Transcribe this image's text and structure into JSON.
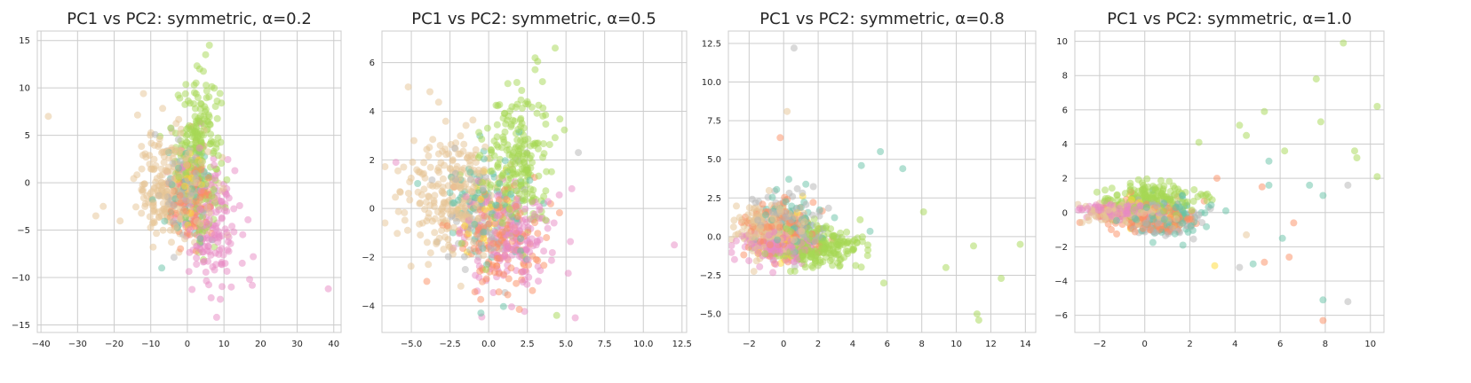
{
  "chart_data": [
    {
      "type": "scatter",
      "title": "PC1 vs PC2: symmetric, α=0.2",
      "xlabel": "",
      "ylabel": "",
      "xlim": [
        -41,
        42
      ],
      "ylim": [
        -15.8,
        16
      ],
      "xticks": [
        -40,
        -30,
        -20,
        -10,
        0,
        10,
        20,
        30,
        40
      ],
      "yticks": [
        -15,
        -10,
        -5,
        0,
        5,
        10,
        15
      ],
      "grid": true,
      "legend": "none",
      "clusters": [
        {
          "name": "green",
          "color": "#a6d854",
          "n": 220,
          "cx": 3,
          "cy": 3.5,
          "sx": 3.0,
          "sy": 3.8
        },
        {
          "name": "tan",
          "color": "#e5c494",
          "n": 260,
          "cx": -4,
          "cy": -0.5,
          "sx": 5.0,
          "sy": 2.8
        },
        {
          "name": "pink",
          "color": "#e78ac3",
          "n": 170,
          "cx": 6,
          "cy": -3.5,
          "sx": 4.0,
          "sy": 3.5
        },
        {
          "name": "orange",
          "color": "#fc8d62",
          "n": 120,
          "cx": 1,
          "cy": -2,
          "sx": 3.0,
          "sy": 2.5
        },
        {
          "name": "teal",
          "color": "#66c2a5",
          "n": 70,
          "cx": 0,
          "cy": -1,
          "sx": 3.0,
          "sy": 2.5
        },
        {
          "name": "gray",
          "color": "#b3b3b3",
          "n": 70,
          "cx": 0,
          "cy": -1,
          "sx": 2.8,
          "sy": 2.3
        },
        {
          "name": "yellow",
          "color": "#ffd92f",
          "n": 25,
          "cx": 1,
          "cy": 0,
          "sx": 2.0,
          "sy": 2.0
        }
      ],
      "outliers": [
        {
          "x": -38,
          "y": 7,
          "c": "#e5c494"
        },
        {
          "x": 38.5,
          "y": -11.2,
          "c": "#e78ac3"
        },
        {
          "x": 18,
          "y": -7.8,
          "c": "#e78ac3"
        },
        {
          "x": 17,
          "y": -10.2,
          "c": "#e78ac3"
        },
        {
          "x": 15,
          "y": -8.5,
          "c": "#e78ac3"
        },
        {
          "x": 8,
          "y": -14.2,
          "c": "#e78ac3"
        },
        {
          "x": 9,
          "y": -12.3,
          "c": "#e78ac3"
        },
        {
          "x": -12,
          "y": 9.4,
          "c": "#e5c494"
        },
        {
          "x": -7,
          "y": -9,
          "c": "#66c2a5"
        },
        {
          "x": 6,
          "y": 14.5,
          "c": "#a6d854"
        },
        {
          "x": 5,
          "y": 13.5,
          "c": "#a6d854"
        },
        {
          "x": -23,
          "y": -2.5,
          "c": "#e5c494"
        },
        {
          "x": -25,
          "y": -3.5,
          "c": "#e5c494"
        },
        {
          "x": 12,
          "y": -11,
          "c": "#e78ac3"
        }
      ]
    },
    {
      "type": "scatter",
      "title": "PC1 vs PC2: symmetric, α=0.5",
      "xlabel": "",
      "ylabel": "",
      "xlim": [
        -6.9,
        12.8
      ],
      "ylim": [
        -5.1,
        7.3
      ],
      "xticks": [
        -5,
        -2.5,
        0,
        2.5,
        5,
        7.5,
        10,
        12.5
      ],
      "xticklabels": [
        "−5.0",
        "−2.5",
        "0.0",
        "2.5",
        "5.0",
        "7.5",
        "10.0",
        "12.5"
      ],
      "yticks": [
        -4,
        -2,
        0,
        2,
        4,
        6
      ],
      "grid": true,
      "legend": "none",
      "clusters": [
        {
          "name": "green",
          "color": "#a6d854",
          "n": 230,
          "cx": 1.8,
          "cy": 2.0,
          "sx": 1.1,
          "sy": 1.5
        },
        {
          "name": "tan",
          "color": "#e5c494",
          "n": 250,
          "cx": -2.5,
          "cy": 0.6,
          "sx": 1.6,
          "sy": 1.2
        },
        {
          "name": "pink",
          "color": "#e78ac3",
          "n": 180,
          "cx": 1.3,
          "cy": -1.3,
          "sx": 1.5,
          "sy": 1.0
        },
        {
          "name": "orange",
          "color": "#fc8d62",
          "n": 130,
          "cx": 0.5,
          "cy": -1.2,
          "sx": 1.4,
          "sy": 1.1
        },
        {
          "name": "teal",
          "color": "#66c2a5",
          "n": 80,
          "cx": 0.0,
          "cy": 0.0,
          "sx": 1.4,
          "sy": 1.1
        },
        {
          "name": "gray",
          "color": "#b3b3b3",
          "n": 80,
          "cx": -0.3,
          "cy": -0.5,
          "sx": 1.4,
          "sy": 1.1
        },
        {
          "name": "yellow",
          "color": "#ffd92f",
          "n": 25,
          "cx": 0.0,
          "cy": 0.0,
          "sx": 1.0,
          "sy": 1.0
        }
      ],
      "outliers": [
        {
          "x": 12,
          "y": -1.5,
          "c": "#e78ac3"
        },
        {
          "x": 4.3,
          "y": 6.6,
          "c": "#a6d854"
        },
        {
          "x": 5.8,
          "y": 2.3,
          "c": "#b3b3b3"
        },
        {
          "x": 5.6,
          "y": -4.5,
          "c": "#e78ac3"
        },
        {
          "x": 4.4,
          "y": -4.4,
          "c": "#a6d854"
        },
        {
          "x": -0.5,
          "y": -4.3,
          "c": "#66c2a5"
        },
        {
          "x": -5.2,
          "y": 5.0,
          "c": "#e5c494"
        },
        {
          "x": -6.0,
          "y": 1.9,
          "c": "#e78ac3"
        },
        {
          "x": -3.8,
          "y": 4.8,
          "c": "#e5c494"
        },
        {
          "x": 3.0,
          "y": 6.2,
          "c": "#a6d854"
        },
        {
          "x": -4.0,
          "y": -3.0,
          "c": "#fc8d62"
        }
      ]
    },
    {
      "type": "scatter",
      "title": "PC1 vs PC2: symmetric, α=0.8",
      "xlabel": "",
      "ylabel": "",
      "xlim": [
        -3.2,
        14.6
      ],
      "ylim": [
        -6.2,
        13.3
      ],
      "xticks": [
        -2,
        0,
        2,
        4,
        6,
        8,
        10,
        12,
        14
      ],
      "yticks": [
        -5,
        -2.5,
        0,
        2.5,
        5,
        7.5,
        10,
        12.5
      ],
      "yticklabels": [
        "−5.0",
        "−2.5",
        "0.0",
        "2.5",
        "5.0",
        "7.5",
        "10.0",
        "12.5"
      ],
      "grid": true,
      "legend": "none",
      "clusters": [
        {
          "name": "green",
          "color": "#a6d854",
          "n": 230,
          "cx": 2.0,
          "cy": -0.7,
          "sx": 1.3,
          "sy": 0.7
        },
        {
          "name": "tan",
          "color": "#e5c494",
          "n": 220,
          "cx": -0.8,
          "cy": 0.4,
          "sx": 0.9,
          "sy": 0.8
        },
        {
          "name": "pink",
          "color": "#e78ac3",
          "n": 170,
          "cx": -0.5,
          "cy": -0.6,
          "sx": 1.0,
          "sy": 0.5
        },
        {
          "name": "orange",
          "color": "#fc8d62",
          "n": 130,
          "cx": 0.0,
          "cy": 0.4,
          "sx": 1.0,
          "sy": 0.9
        },
        {
          "name": "teal",
          "color": "#66c2a5",
          "n": 80,
          "cx": 0.5,
          "cy": 0.8,
          "sx": 1.1,
          "sy": 1.1
        },
        {
          "name": "gray",
          "color": "#b3b3b3",
          "n": 80,
          "cx": 0.5,
          "cy": 1.0,
          "sx": 1.1,
          "sy": 1.2
        },
        {
          "name": "yellow",
          "color": "#ffd92f",
          "n": 25,
          "cx": 0.0,
          "cy": 0.0,
          "sx": 0.8,
          "sy": 0.8
        }
      ],
      "outliers": [
        {
          "x": 0.6,
          "y": 12.2,
          "c": "#b3b3b3"
        },
        {
          "x": 0.2,
          "y": 8.1,
          "c": "#e5c494"
        },
        {
          "x": 11.2,
          "y": -5.0,
          "c": "#a6d854"
        },
        {
          "x": 11.3,
          "y": -5.4,
          "c": "#a6d854"
        },
        {
          "x": 12.6,
          "y": -2.7,
          "c": "#a6d854"
        },
        {
          "x": 13.7,
          "y": -0.5,
          "c": "#a6d854"
        },
        {
          "x": 11.0,
          "y": -0.6,
          "c": "#a6d854"
        },
        {
          "x": 5.6,
          "y": 5.5,
          "c": "#66c2a5"
        },
        {
          "x": 6.9,
          "y": 4.4,
          "c": "#66c2a5"
        },
        {
          "x": -0.2,
          "y": 6.4,
          "c": "#fc8d62"
        },
        {
          "x": 9.4,
          "y": -2.0,
          "c": "#a6d854"
        },
        {
          "x": 8.1,
          "y": 1.6,
          "c": "#a6d854"
        },
        {
          "x": 5.8,
          "y": -3.0,
          "c": "#a6d854"
        },
        {
          "x": 4.5,
          "y": 4.6,
          "c": "#66c2a5"
        }
      ]
    },
    {
      "type": "scatter",
      "title": "PC1 vs PC2: symmetric, α=1.0",
      "xlabel": "",
      "ylabel": "",
      "xlim": [
        -3.1,
        10.6
      ],
      "ylim": [
        -7.0,
        10.6
      ],
      "xticks": [
        -2,
        0,
        2,
        4,
        6,
        8,
        10
      ],
      "yticks": [
        -6,
        -4,
        -2,
        0,
        2,
        4,
        6,
        8,
        10
      ],
      "grid": true,
      "legend": "none",
      "clusters": [
        {
          "name": "green",
          "color": "#a6d854",
          "n": 200,
          "cx": 0.2,
          "cy": 0.7,
          "sx": 1.0,
          "sy": 0.5
        },
        {
          "name": "tan",
          "color": "#e5c494",
          "n": 180,
          "cx": -0.8,
          "cy": 0.0,
          "sx": 0.9,
          "sy": 0.3
        },
        {
          "name": "pink",
          "color": "#e78ac3",
          "n": 150,
          "cx": -1.0,
          "cy": 0.1,
          "sx": 0.8,
          "sy": 0.2
        },
        {
          "name": "orange",
          "color": "#fc8d62",
          "n": 140,
          "cx": 0.3,
          "cy": -0.4,
          "sx": 1.0,
          "sy": 0.5
        },
        {
          "name": "teal",
          "color": "#66c2a5",
          "n": 80,
          "cx": 0.8,
          "cy": -0.3,
          "sx": 1.0,
          "sy": 0.6
        },
        {
          "name": "gray",
          "color": "#b3b3b3",
          "n": 80,
          "cx": 0.8,
          "cy": -0.5,
          "sx": 1.0,
          "sy": 0.6
        },
        {
          "name": "yellow",
          "color": "#ffd92f",
          "n": 25,
          "cx": 0.0,
          "cy": 0.0,
          "sx": 0.8,
          "sy": 0.5
        }
      ],
      "outliers": [
        {
          "x": 8.8,
          "y": 9.9,
          "c": "#a6d854"
        },
        {
          "x": 7.6,
          "y": 7.8,
          "c": "#a6d854"
        },
        {
          "x": 7.8,
          "y": 5.3,
          "c": "#a6d854"
        },
        {
          "x": 10.3,
          "y": 6.2,
          "c": "#a6d854"
        },
        {
          "x": 9.3,
          "y": 3.6,
          "c": "#a6d854"
        },
        {
          "x": 9.4,
          "y": 3.2,
          "c": "#a6d854"
        },
        {
          "x": 10.3,
          "y": 2.1,
          "c": "#a6d854"
        },
        {
          "x": 9.0,
          "y": 1.6,
          "c": "#b3b3b3"
        },
        {
          "x": 5.3,
          "y": 5.9,
          "c": "#a6d854"
        },
        {
          "x": 4.2,
          "y": 5.1,
          "c": "#a6d854"
        },
        {
          "x": 4.5,
          "y": 4.5,
          "c": "#a6d854"
        },
        {
          "x": 6.2,
          "y": 3.6,
          "c": "#a6d854"
        },
        {
          "x": 5.5,
          "y": 3.0,
          "c": "#66c2a5"
        },
        {
          "x": 2.4,
          "y": 4.1,
          "c": "#a6d854"
        },
        {
          "x": 7.9,
          "y": -5.1,
          "c": "#66c2a5"
        },
        {
          "x": 9.0,
          "y": -5.2,
          "c": "#b3b3b3"
        },
        {
          "x": 7.9,
          "y": -6.3,
          "c": "#fc8d62"
        },
        {
          "x": 4.2,
          "y": -3.2,
          "c": "#b3b3b3"
        },
        {
          "x": 4.8,
          "y": -3.0,
          "c": "#66c2a5"
        },
        {
          "x": 5.3,
          "y": -2.9,
          "c": "#fc8d62"
        },
        {
          "x": 6.4,
          "y": -2.6,
          "c": "#fc8d62"
        },
        {
          "x": 6.1,
          "y": -1.5,
          "c": "#66c2a5"
        },
        {
          "x": 5.2,
          "y": 1.5,
          "c": "#fc8d62"
        },
        {
          "x": 5.5,
          "y": 1.6,
          "c": "#66c2a5"
        },
        {
          "x": 7.3,
          "y": 1.6,
          "c": "#66c2a5"
        },
        {
          "x": 7.9,
          "y": 1.0,
          "c": "#66c2a5"
        },
        {
          "x": 3.2,
          "y": 2.0,
          "c": "#fc8d62"
        },
        {
          "x": 3.1,
          "y": -3.1,
          "c": "#ffd92f"
        },
        {
          "x": 6.6,
          "y": -0.6,
          "c": "#fc8d62"
        },
        {
          "x": 4.5,
          "y": -1.3,
          "c": "#e5c494"
        }
      ]
    }
  ]
}
